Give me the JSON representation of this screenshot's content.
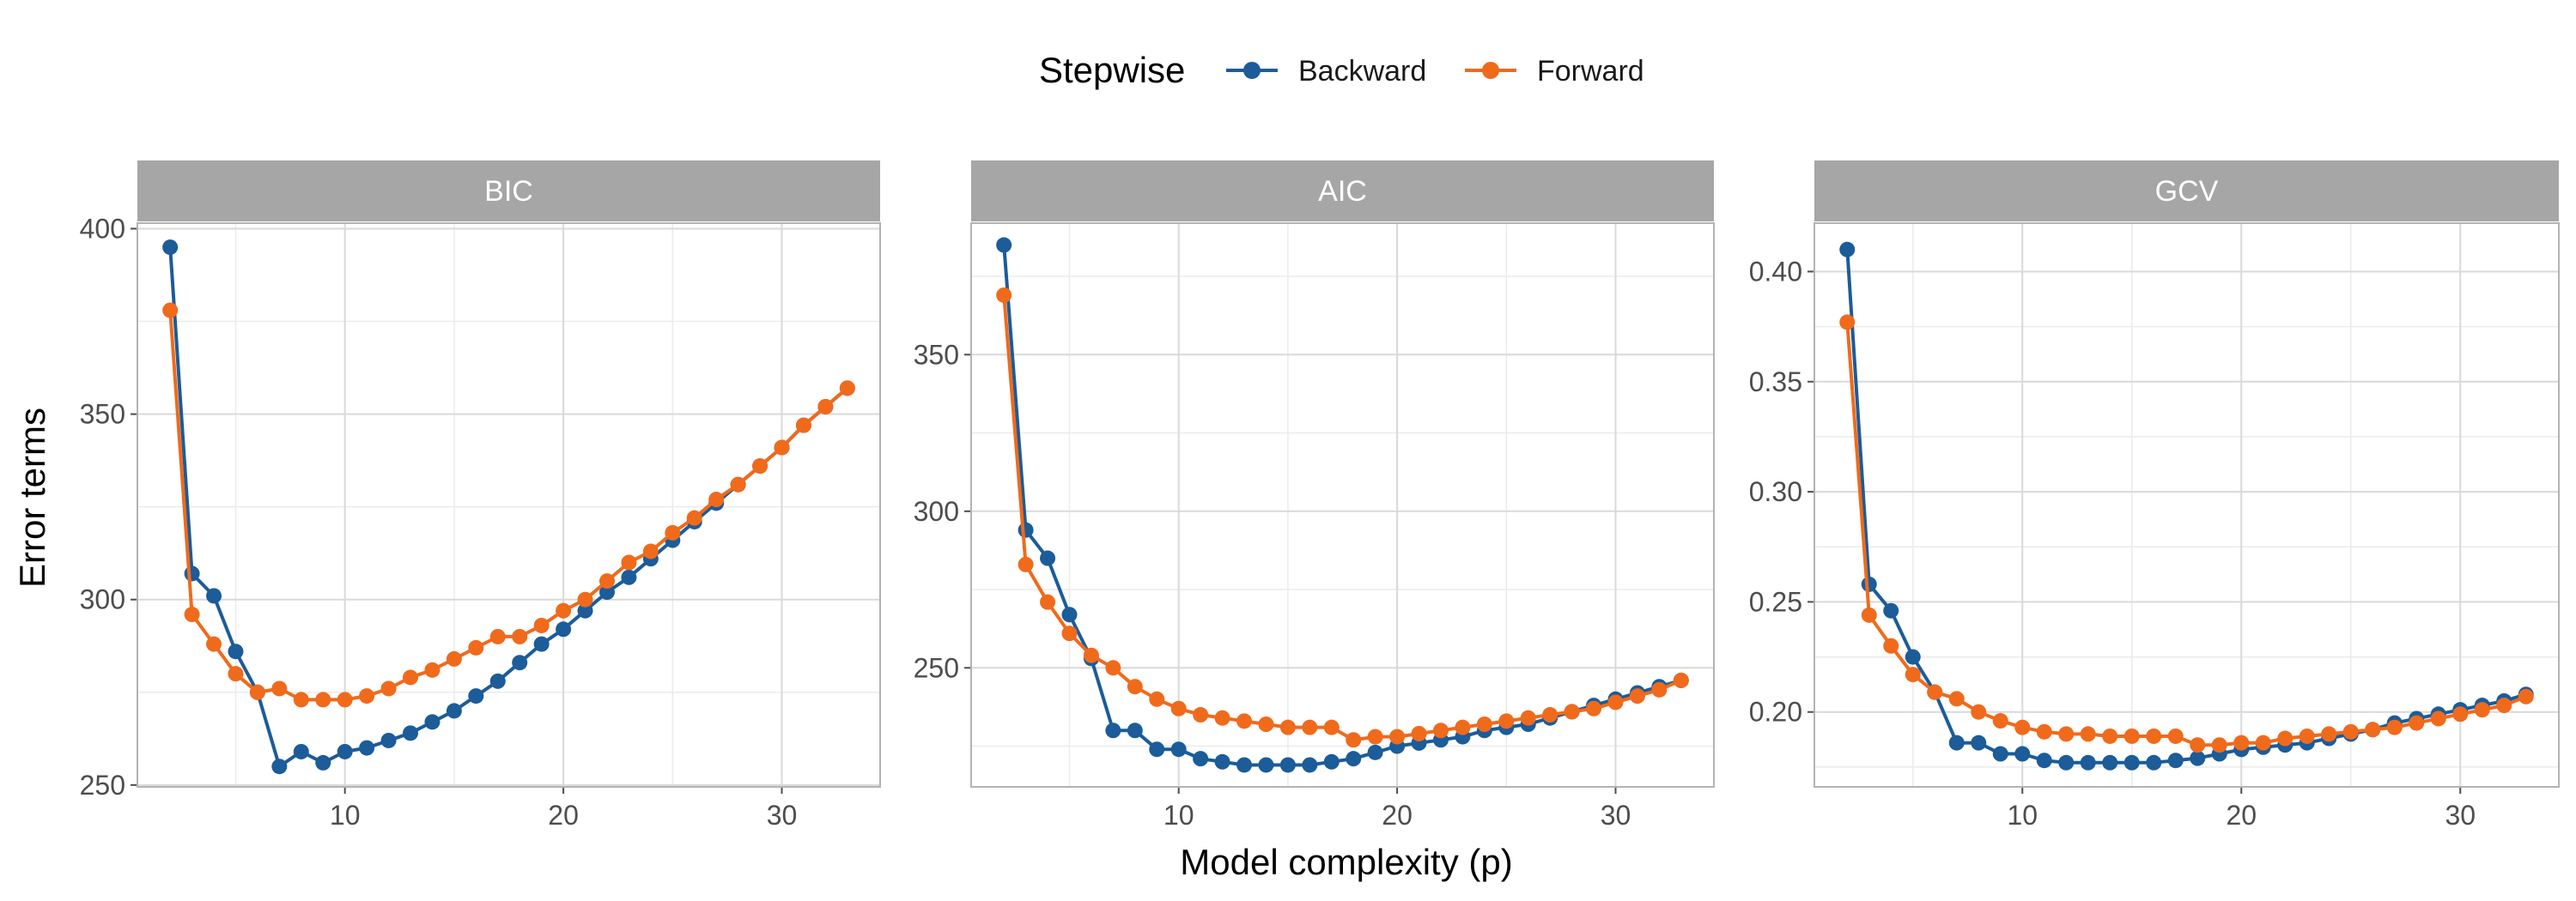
{
  "legend": {
    "title": "Stepwise",
    "entries": [
      {
        "label": "Backward",
        "color": "#1b5c99"
      },
      {
        "label": "Forward",
        "color": "#f06a1c"
      }
    ]
  },
  "axes": {
    "xlabel": "Model complexity (p)",
    "ylabel": "Error terms"
  },
  "chart_data": [
    {
      "type": "line",
      "title": "BIC",
      "xlim": [
        0.5,
        34.5
      ],
      "ylim": [
        249.5,
        401.5
      ],
      "xticks": [
        10,
        20,
        30
      ],
      "yticks": [
        250,
        300,
        350,
        400
      ],
      "x": [
        2,
        3,
        4,
        5,
        6,
        7,
        8,
        9,
        10,
        11,
        12,
        13,
        14,
        15,
        16,
        17,
        18,
        19,
        20,
        21,
        22,
        23,
        24,
        25,
        26,
        27,
        28,
        29,
        30,
        31,
        32,
        33
      ],
      "series": [
        {
          "name": "Backward",
          "color": "#1b5c99",
          "values": [
            395,
            307,
            301,
            286,
            275,
            255,
            259,
            256,
            259,
            260,
            262,
            264,
            267,
            270,
            274,
            278,
            283,
            288,
            292,
            297,
            302,
            306,
            311,
            316,
            321,
            326,
            331,
            336,
            341,
            347,
            352,
            357
          ]
        },
        {
          "name": "Forward",
          "color": "#f06a1c",
          "values": [
            378,
            296,
            288,
            280,
            275,
            276,
            273,
            273,
            273,
            274,
            276,
            279,
            281,
            284,
            287,
            290,
            290,
            293,
            297,
            300,
            305,
            310,
            313,
            318,
            322,
            327,
            331,
            336,
            341,
            347,
            352,
            357
          ]
        }
      ]
    },
    {
      "type": "line",
      "title": "AIC",
      "xlim": [
        0.5,
        34.5
      ],
      "ylim": [
        212,
        392
      ],
      "xticks": [
        10,
        20,
        30
      ],
      "yticks": [
        250,
        300,
        350
      ],
      "x": [
        2,
        3,
        4,
        5,
        6,
        7,
        8,
        9,
        10,
        11,
        12,
        13,
        14,
        15,
        16,
        17,
        18,
        19,
        20,
        21,
        22,
        23,
        24,
        25,
        26,
        27,
        28,
        29,
        30,
        31,
        32,
        33
      ],
      "series": [
        {
          "name": "Backward",
          "color": "#1b5c99",
          "values": [
            385,
            294,
            285,
            267,
            253,
            230,
            230,
            224,
            224,
            221,
            220,
            219,
            219,
            219,
            219,
            220,
            221,
            223,
            225,
            226,
            227,
            228,
            230,
            231,
            232,
            234,
            236,
            238,
            240,
            242,
            244,
            246
          ]
        },
        {
          "name": "Forward",
          "color": "#f06a1c",
          "values": [
            369,
            283,
            271,
            261,
            254,
            250,
            244,
            240,
            237,
            235,
            234,
            233,
            232,
            231,
            231,
            231,
            227,
            228,
            228,
            229,
            230,
            231,
            232,
            233,
            234,
            235,
            236,
            237,
            239,
            241,
            243,
            246
          ]
        }
      ]
    },
    {
      "type": "line",
      "title": "GCV",
      "xlim": [
        0.5,
        34.5
      ],
      "ylim": [
        0.166,
        0.422
      ],
      "xticks": [
        10,
        20,
        30
      ],
      "yticks": [
        0.2,
        0.25,
        0.3,
        0.35,
        0.4
      ],
      "x": [
        2,
        3,
        4,
        5,
        6,
        7,
        8,
        9,
        10,
        11,
        12,
        13,
        14,
        15,
        16,
        17,
        18,
        19,
        20,
        21,
        22,
        23,
        24,
        25,
        26,
        27,
        28,
        29,
        30,
        31,
        32,
        33
      ],
      "series": [
        {
          "name": "Backward",
          "color": "#1b5c99",
          "values": [
            0.41,
            0.258,
            0.246,
            0.225,
            0.209,
            0.186,
            0.186,
            0.181,
            0.181,
            0.178,
            0.177,
            0.177,
            0.177,
            0.177,
            0.177,
            0.178,
            0.179,
            0.181,
            0.183,
            0.184,
            0.185,
            0.186,
            0.188,
            0.19,
            0.192,
            0.195,
            0.197,
            0.199,
            0.201,
            0.203,
            0.205,
            0.208
          ]
        },
        {
          "name": "Forward",
          "color": "#f06a1c",
          "values": [
            0.377,
            0.244,
            0.23,
            0.217,
            0.209,
            0.206,
            0.2,
            0.196,
            0.193,
            0.191,
            0.19,
            0.19,
            0.189,
            0.189,
            0.189,
            0.189,
            0.185,
            0.185,
            0.186,
            0.186,
            0.188,
            0.189,
            0.19,
            0.191,
            0.192,
            0.193,
            0.195,
            0.197,
            0.199,
            0.201,
            0.203,
            0.207
          ]
        }
      ]
    }
  ]
}
